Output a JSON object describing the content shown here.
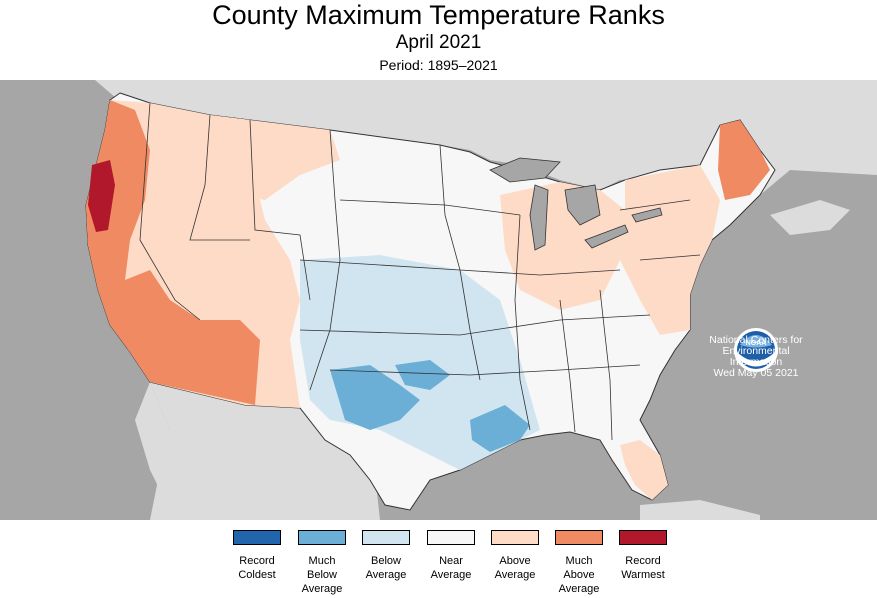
{
  "header": {
    "title": "County Maximum Temperature Ranks",
    "subtitle": "April 2021",
    "period": "Period: 1895–2021"
  },
  "map_info": {
    "agency_logo_text": "NOAA",
    "credit": [
      "National Centers for",
      "Environmental",
      "Information",
      "Wed May 05 2021"
    ]
  },
  "legend": [
    {
      "lines": [
        "Record",
        "Coldest"
      ],
      "color": "#2166ac"
    },
    {
      "lines": [
        "Much",
        "Below",
        "Average"
      ],
      "color": "#6baed6"
    },
    {
      "lines": [
        "Below",
        "Average"
      ],
      "color": "#d1e5f0"
    },
    {
      "lines": [
        "Near",
        "Average"
      ],
      "color": "#f7f7f7"
    },
    {
      "lines": [
        "Above",
        "Average"
      ],
      "color": "#fddbc7"
    },
    {
      "lines": [
        "Much",
        "Above",
        "Average"
      ],
      "color": "#ef8a62"
    },
    {
      "lines": [
        "Record",
        "Warmest"
      ],
      "color": "#b2182b"
    }
  ]
}
